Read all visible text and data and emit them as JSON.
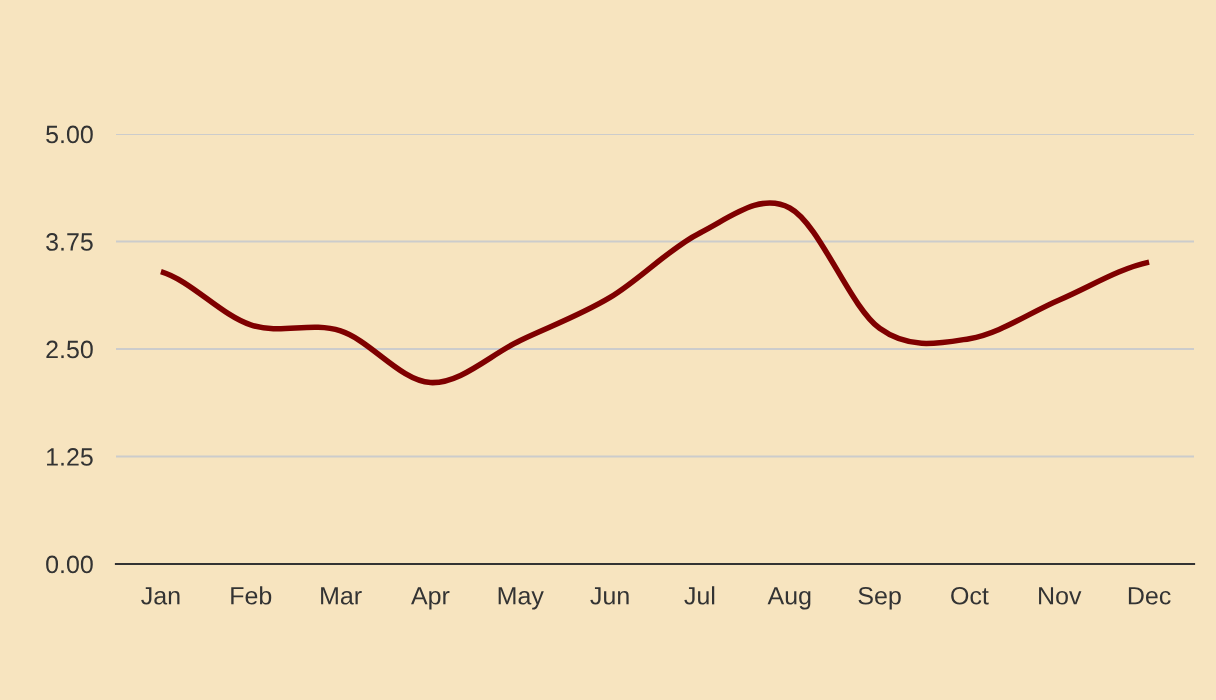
{
  "chart_data": {
    "type": "line",
    "categories": [
      "Jan",
      "Feb",
      "Mar",
      "Apr",
      "May",
      "Jun",
      "Jul",
      "Aug",
      "Sep",
      "Oct",
      "Nov",
      "Dec"
    ],
    "series": [
      {
        "color": "#7f0000",
        "values": [
          3.4,
          2.78,
          2.71,
          2.11,
          2.6,
          3.1,
          3.85,
          4.14,
          2.74,
          2.62,
          3.07,
          3.51
        ]
      }
    ],
    "ylim": [
      0,
      5
    ],
    "yticks": [
      {
        "value": 0,
        "label": "0.00"
      },
      {
        "value": 1.25,
        "label": "1.25"
      },
      {
        "value": 2.5,
        "label": "2.50"
      },
      {
        "value": 3.75,
        "label": "3.75"
      },
      {
        "value": 5,
        "label": "5.00"
      }
    ],
    "grid": "y",
    "marker": "none",
    "line_style": "solid"
  }
}
